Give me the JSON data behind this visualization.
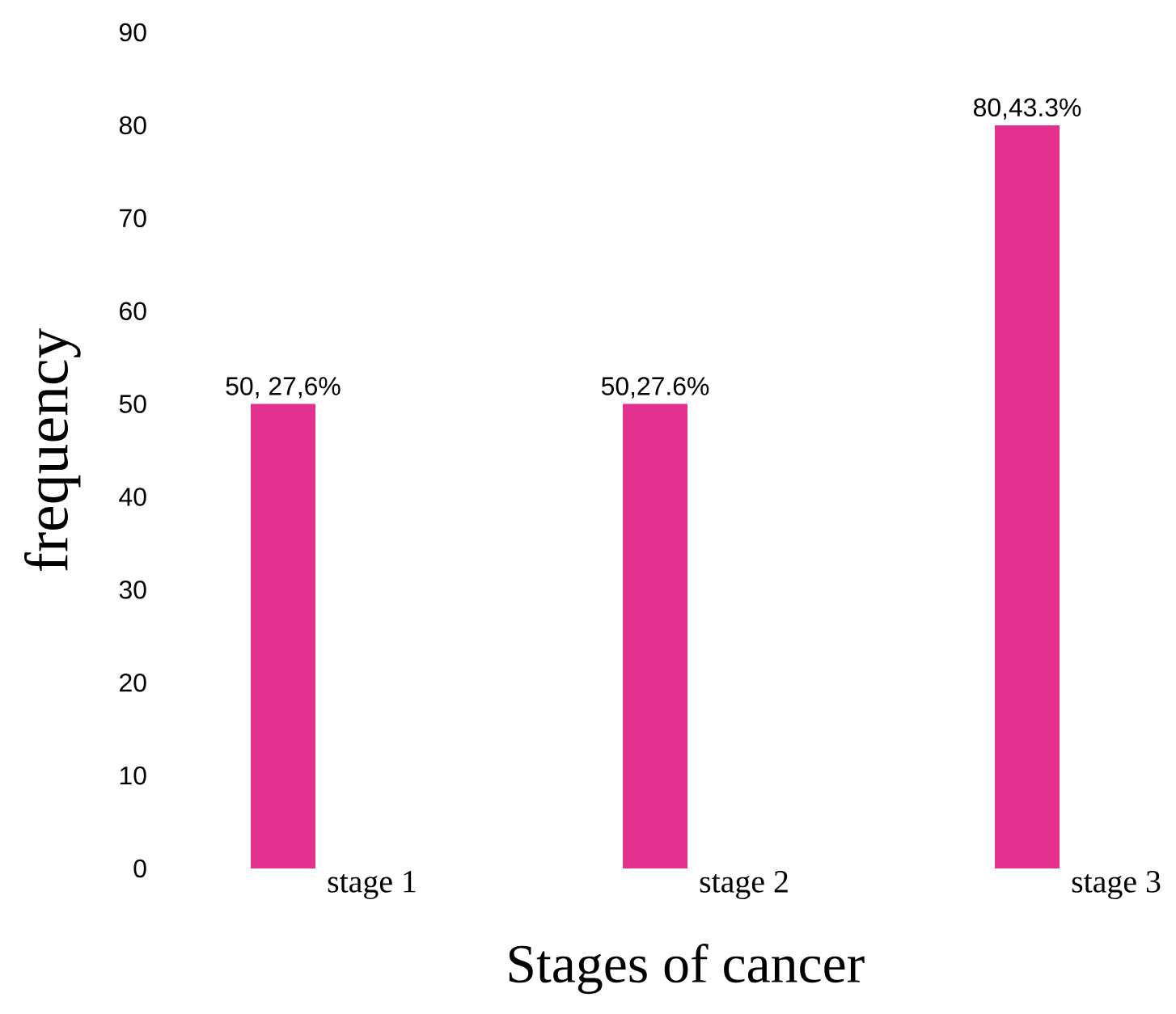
{
  "chart_data": {
    "type": "bar",
    "xlabel": "Stages of cancer",
    "ylabel": "frequency",
    "categories": [
      "stage 1",
      "stage 2",
      "stage 3"
    ],
    "values": [
      50,
      50,
      80
    ],
    "color": "#e3318f",
    "value_labels": [
      "50, 27,6%",
      "50,27.6%",
      "80,43.3%"
    ],
    "ylim": [
      0,
      90
    ],
    "yticks": [
      0,
      10,
      20,
      30,
      40,
      50,
      60,
      70,
      80,
      90
    ],
    "grid": false
  }
}
